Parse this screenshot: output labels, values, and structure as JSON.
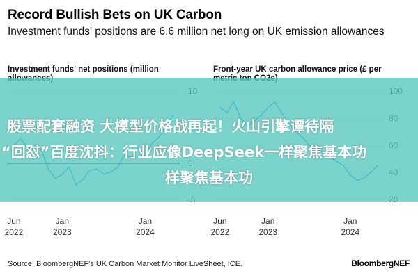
{
  "header": {
    "title": "Record Bullish Bets on UK Carbon",
    "subtitle": "Investment funds' positions are 6.6 million net long on UK emission allowances"
  },
  "overlay": {
    "line1": "股票配套融资 大模型价格战再起！火山引擎谭待隔",
    "line2": "“回怼”百度沈抖：行业应像DeepSeek一样聚焦基本功",
    "line3": "样聚焦基本功"
  },
  "footer": {
    "source": "Source: BloombergNEF's UK Carbon Market Monitor LiveSheet, ICE.",
    "brand": "BloombergNEF"
  },
  "colors": {
    "line": "#2f8fd8",
    "zero": "#000000",
    "grid": "#e3e3e3",
    "overlay": "#56c8be"
  },
  "chart_data": [
    {
      "type": "line",
      "title": "Investment funds' net positions (million allowances)",
      "x_tick_labels": [
        [
          "Jun",
          "2022"
        ],
        [
          "Jan",
          "2023"
        ],
        [
          "Jan",
          "2024"
        ]
      ],
      "x_ticks": [
        "2022-06",
        "2023-01",
        "2024-01"
      ],
      "y_tick_labels": [
        "10",
        "5",
        "0",
        "-5"
      ],
      "ylim": [
        -5,
        10
      ],
      "grid": true,
      "series": [
        {
          "x": [
            "2022-06",
            "2022-07",
            "2022-08",
            "2022-09",
            "2022-10",
            "2022-11",
            "2022-12",
            "2023-01",
            "2023-02",
            "2023-03",
            "2023-04",
            "2023-05",
            "2023-06",
            "2023-07",
            "2023-08",
            "2023-09",
            "2023-10",
            "2023-11",
            "2023-12",
            "2024-01",
            "2024-02",
            "2024-03",
            "2024-04",
            "2024-05"
          ],
          "values": [
            2.5,
            3.4,
            2.1,
            2.6,
            1.8,
            -0.8,
            -2.1,
            -1.5,
            -0.5,
            -3.0,
            -2.2,
            -1.0,
            -0.8,
            -1.5,
            -1.2,
            -0.6,
            1.2,
            0.8,
            2.2,
            1.0,
            2.8,
            3.6,
            5.2,
            6.6
          ]
        }
      ]
    },
    {
      "type": "line",
      "title": "Front-year UK carbon allowance price (£ per metric ton CO2e)",
      "x_tick_labels": [
        [
          "Jun",
          "2022"
        ],
        [
          "Jan",
          "2023"
        ],
        [
          "Jan",
          "2024"
        ]
      ],
      "x_ticks": [
        "2022-06",
        "2023-01",
        "2024-01"
      ],
      "y_tick_labels": [
        "100",
        "80",
        "60",
        "40",
        "20"
      ],
      "ylim": [
        20,
        100
      ],
      "grid": true,
      "series": [
        {
          "x": [
            "2022-06",
            "2022-07",
            "2022-08",
            "2022-09",
            "2022-10",
            "2022-11",
            "2022-12",
            "2023-01",
            "2023-02",
            "2023-03",
            "2023-04",
            "2023-05",
            "2023-06",
            "2023-07",
            "2023-08",
            "2023-09",
            "2023-10",
            "2023-11",
            "2023-12",
            "2024-01",
            "2024-02",
            "2024-03",
            "2024-04",
            "2024-05"
          ],
          "values": [
            88,
            84,
            92,
            80,
            74,
            78,
            82,
            88,
            92,
            84,
            76,
            70,
            66,
            60,
            58,
            55,
            52,
            48,
            45,
            38,
            34,
            36,
            40,
            45
          ]
        }
      ]
    }
  ]
}
